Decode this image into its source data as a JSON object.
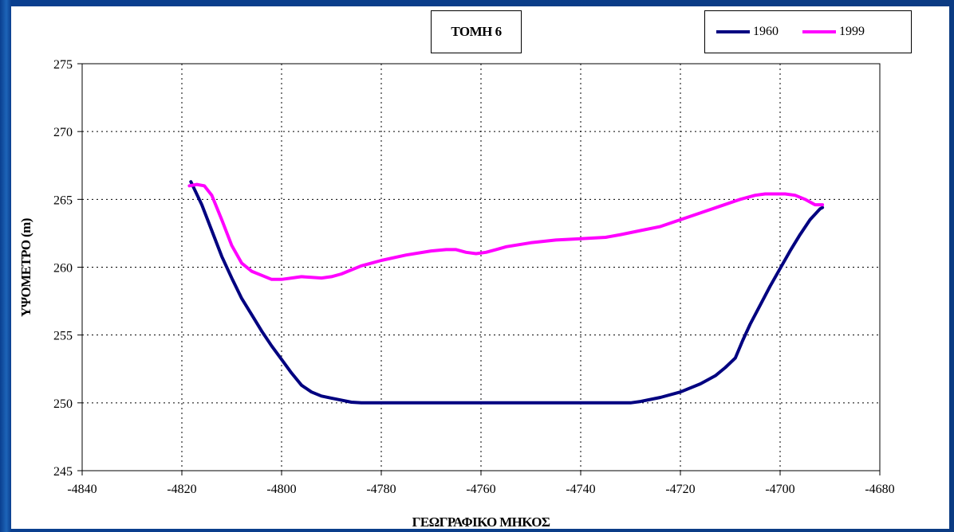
{
  "chart_data": {
    "type": "line",
    "title": "ΤΟΜΗ 6",
    "xlabel": "ΓΕΩΓΡΑΦΙΚΟ ΜΗΚΟΣ",
    "ylabel": "ΥΨΟΜΕΤΡΟ (m)",
    "xlim": [
      -4840,
      -4680
    ],
    "ylim": [
      245,
      275
    ],
    "xticks": [
      -4840,
      -4820,
      -4800,
      -4780,
      -4760,
      -4740,
      -4720,
      -4700,
      -4680
    ],
    "yticks": [
      245,
      250,
      255,
      260,
      265,
      270,
      275
    ],
    "grid": true,
    "legend_position": "top-right",
    "series": [
      {
        "name": "1960",
        "color": "#000080",
        "x": [
          -4818.2,
          -4816,
          -4814,
          -4812,
          -4810,
          -4808,
          -4806,
          -4804,
          -4802,
          -4800,
          -4798,
          -4796,
          -4794,
          -4792,
          -4790,
          -4788,
          -4786,
          -4784,
          -4782,
          -4780,
          -4778,
          -4776,
          -4775,
          -4770,
          -4760,
          -4750,
          -4740,
          -4735,
          -4730,
          -4728,
          -4724,
          -4720,
          -4716,
          -4713,
          -4711,
          -4709,
          -4707.5,
          -4706,
          -4704,
          -4702,
          -4700,
          -4698,
          -4696,
          -4694,
          -4692,
          -4691.5
        ],
        "y": [
          266.3,
          264.6,
          262.7,
          260.8,
          259.2,
          257.7,
          256.5,
          255.3,
          254.2,
          253.2,
          252.2,
          251.3,
          250.8,
          250.5,
          250.35,
          250.2,
          250.05,
          250,
          250,
          250,
          250,
          250,
          250,
          250,
          250,
          250,
          250,
          250,
          250,
          250.1,
          250.4,
          250.8,
          251.4,
          252.0,
          252.6,
          253.3,
          254.6,
          255.8,
          257.2,
          258.6,
          259.9,
          261.2,
          262.4,
          263.5,
          264.3,
          264.4
        ]
      },
      {
        "name": "1999",
        "color": "#ff00ff",
        "x": [
          -4818.5,
          -4817,
          -4815.5,
          -4814,
          -4812,
          -4810,
          -4808,
          -4806,
          -4804,
          -4802,
          -4800,
          -4798,
          -4796,
          -4794,
          -4792,
          -4790,
          -4788,
          -4786,
          -4784,
          -4782,
          -4780,
          -4775,
          -4770,
          -4767,
          -4765,
          -4763,
          -4761,
          -4759,
          -4757,
          -4755,
          -4750,
          -4745,
          -4740,
          -4735,
          -4732,
          -4728,
          -4724,
          -4720,
          -4716,
          -4712,
          -4708,
          -4705,
          -4703,
          -4701,
          -4699,
          -4697,
          -4695,
          -4693,
          -4691.5
        ],
        "y": [
          266.0,
          266.1,
          266.0,
          265.3,
          263.5,
          261.6,
          260.3,
          259.7,
          259.4,
          259.1,
          259.1,
          259.2,
          259.3,
          259.25,
          259.2,
          259.3,
          259.5,
          259.8,
          260.1,
          260.3,
          260.5,
          260.9,
          261.2,
          261.3,
          261.3,
          261.1,
          261.0,
          261.1,
          261.3,
          261.5,
          261.8,
          262.0,
          262.1,
          262.2,
          262.4,
          262.7,
          263.0,
          263.5,
          264.0,
          264.5,
          265.0,
          265.3,
          265.4,
          265.4,
          265.4,
          265.3,
          265.0,
          264.6,
          264.6
        ]
      }
    ]
  }
}
